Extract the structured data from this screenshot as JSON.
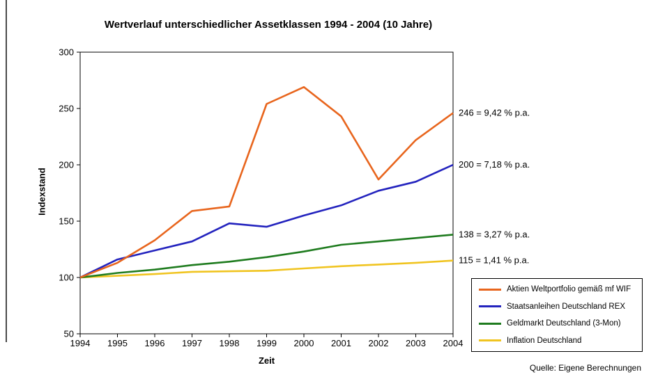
{
  "source": "Quelle: Eigene Berechnungen",
  "chart_data": {
    "type": "line",
    "title": "Wertverlauf unterschiedlicher Assetklassen 1994 - 2004 (10 Jahre)",
    "xlabel": "Zeit",
    "ylabel": "Indexstand",
    "ylim": [
      50,
      300
    ],
    "yticks": [
      50,
      100,
      150,
      200,
      250,
      300
    ],
    "grid": false,
    "legend_position": "bottom-right",
    "x": [
      1994,
      1995,
      1996,
      1997,
      1998,
      1999,
      2000,
      2001,
      2002,
      2003,
      2004
    ],
    "series": [
      {
        "name": "Aktien Weltportfolio gemäß mf WIF",
        "color": "#E8651D",
        "values": [
          100,
          113,
          133,
          159,
          163,
          254,
          269,
          243,
          187,
          222,
          246
        ],
        "annotation": "246 = 9,42 % p.a."
      },
      {
        "name": "Staatsanleihen Deutschland REX",
        "color": "#2323BE",
        "values": [
          100,
          116,
          124,
          132,
          148,
          145,
          155,
          164,
          177,
          185,
          200
        ],
        "annotation": "200 = 7,18 % p.a."
      },
      {
        "name": "Geldmarkt Deutschland (3-Mon)",
        "color": "#1E7B1E",
        "values": [
          100,
          104,
          107,
          111,
          114,
          118,
          123,
          129,
          132,
          135,
          138
        ],
        "annotation": "138 = 3,27 % p.a."
      },
      {
        "name": "Inflation Deutschland",
        "color": "#F0C420",
        "values": [
          100,
          101.5,
          103,
          105,
          105.5,
          106,
          108,
          110,
          111.5,
          113,
          115
        ],
        "annotation": "115 = 1,41 % p.a."
      }
    ]
  }
}
